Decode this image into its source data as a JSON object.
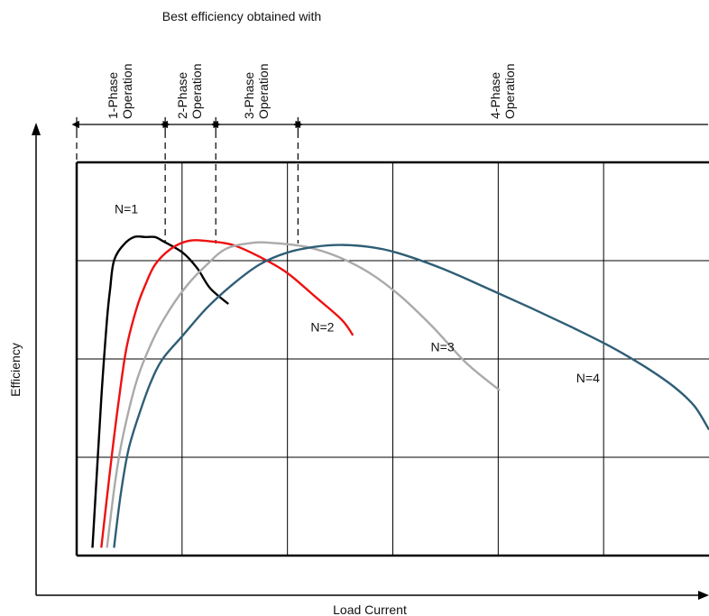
{
  "chart_data": {
    "type": "line",
    "title": "Best efficiency obtained with",
    "xlabel": "Load Current",
    "ylabel": "Efficiency",
    "grid": true,
    "legend": "none",
    "xlim": [
      0,
      100
    ],
    "ylim": [
      0,
      100
    ],
    "phases": [
      {
        "line1": "1-Phase",
        "line2": "Operation",
        "x_start": 0,
        "x_end": 14
      },
      {
        "line1": "2-Phase",
        "line2": "Operation",
        "x_start": 14,
        "x_end": 22
      },
      {
        "line1": "3-Phase",
        "line2": "Operation",
        "x_start": 22,
        "x_end": 35
      },
      {
        "line1": "4-Phase",
        "line2": "Operation",
        "x_start": 35,
        "x_end": 100
      }
    ],
    "series": [
      {
        "name": "N=1",
        "color": "#000000",
        "x": [
          2.5,
          3.9,
          4.8,
          5.3,
          5.9,
          7.4,
          9.1,
          10.9,
          12.4,
          13.6,
          16.8,
          19.1,
          21.1,
          24.0
        ],
        "y": [
          2,
          40,
          60,
          68,
          75,
          79,
          81,
          81,
          81,
          80,
          77,
          73,
          68,
          64
        ]
      },
      {
        "name": "N=2",
        "color": "#ee1111",
        "x": [
          3.9,
          5.3,
          6.7,
          7.9,
          9.5,
          10.9,
          12.4,
          14.9,
          17.6,
          20.6,
          24.7,
          28.9,
          33.2,
          37.6,
          41.9,
          43.7
        ],
        "y": [
          2,
          22,
          40,
          53,
          63,
          69,
          74,
          78,
          80,
          80,
          79,
          76,
          72,
          66,
          60,
          56
        ]
      },
      {
        "name": "N=3",
        "color": "#aaaaaa",
        "x": [
          4.8,
          6.1,
          7.4,
          9.6,
          12.4,
          14.9,
          17.6,
          20.6,
          23.6,
          27.6,
          31.0,
          36.3,
          41.3,
          46.2,
          51.2,
          56.4,
          61.6,
          66.9
        ],
        "y": [
          2,
          19,
          31,
          45,
          56,
          63,
          69,
          74,
          78,
          79.5,
          79.5,
          78.5,
          76,
          72,
          66,
          58,
          49,
          42
        ]
      },
      {
        "name": "N=4",
        "color": "#2f5e76",
        "x": [
          5.9,
          7.0,
          8.2,
          9.9,
          11.7,
          13.6,
          16.8,
          20.6,
          24.7,
          28.9,
          33.2,
          37.6,
          41.9,
          46.2,
          50.7,
          57.8,
          64.9,
          71.8,
          78.4,
          84.6,
          89.9,
          94.4,
          97.7,
          100
        ],
        "y": [
          2,
          16,
          27,
          36,
          44,
          50,
          56,
          63,
          69,
          74,
          77,
          78.5,
          79,
          78.5,
          77,
          73,
          68,
          63,
          58,
          53,
          48,
          43,
          38,
          32
        ]
      }
    ],
    "annotations": [
      {
        "text": "N=1",
        "x": 6,
        "y": 87
      },
      {
        "text": "N=2",
        "x": 37,
        "y": 57
      },
      {
        "text": "N=3",
        "x": 56,
        "y": 52
      },
      {
        "text": "N=4",
        "x": 79,
        "y": 44
      }
    ]
  }
}
